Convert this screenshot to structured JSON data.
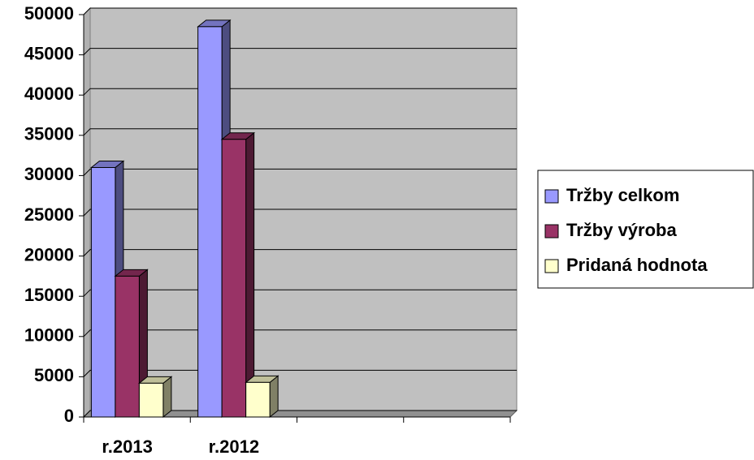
{
  "chart_data": {
    "type": "bar3d",
    "categories": [
      "r.2013",
      "r.2012",
      null,
      null
    ],
    "series": [
      {
        "name": "Tržby celkom",
        "color": "#9999ff",
        "values": [
          31000,
          48500,
          null,
          null
        ]
      },
      {
        "name": "Tržby výroba",
        "color": "#993366",
        "values": [
          17500,
          34500,
          null,
          null
        ]
      },
      {
        "name": "Pridaná hodnota",
        "color": "#ffffcc",
        "values": [
          4200,
          4300,
          null,
          null
        ]
      }
    ],
    "ylim": [
      0,
      50000
    ],
    "yticks": [
      0,
      5000,
      10000,
      15000,
      20000,
      25000,
      30000,
      35000,
      40000,
      45000,
      50000
    ],
    "grid": true,
    "legend": "right"
  }
}
